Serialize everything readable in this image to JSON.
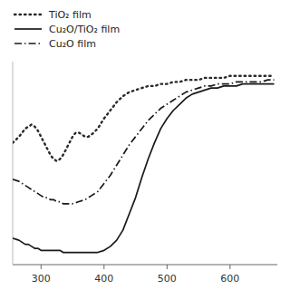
{
  "chart_data": {
    "type": "line",
    "xlim": [
      255,
      675
    ],
    "ylim": [
      0,
      1
    ],
    "xticks": [
      300,
      400,
      500,
      600
    ],
    "tick_labels": "x",
    "legend": "upper left",
    "series": [
      {
        "name": "TiO₂ film",
        "color": "#2a2a2a",
        "line_style": "dotted",
        "x": [
          255,
          265,
          270,
          275,
          280,
          285,
          290,
          295,
          300,
          305,
          310,
          315,
          320,
          325,
          330,
          335,
          340,
          345,
          350,
          355,
          360,
          365,
          370,
          375,
          380,
          390,
          400,
          410,
          420,
          430,
          440,
          450,
          460,
          470,
          480,
          490,
          500,
          510,
          520,
          530,
          540,
          550,
          560,
          570,
          580,
          590,
          600,
          610,
          620,
          630,
          640,
          650,
          660,
          670
        ],
        "values": [
          0.6,
          0.63,
          0.65,
          0.67,
          0.68,
          0.69,
          0.68,
          0.66,
          0.63,
          0.6,
          0.57,
          0.54,
          0.52,
          0.51,
          0.52,
          0.54,
          0.57,
          0.6,
          0.63,
          0.65,
          0.65,
          0.64,
          0.63,
          0.63,
          0.64,
          0.67,
          0.72,
          0.76,
          0.8,
          0.83,
          0.85,
          0.86,
          0.87,
          0.88,
          0.88,
          0.89,
          0.89,
          0.9,
          0.9,
          0.91,
          0.91,
          0.91,
          0.92,
          0.92,
          0.92,
          0.92,
          0.93,
          0.93,
          0.93,
          0.93,
          0.93,
          0.93,
          0.93,
          0.93
        ]
      },
      {
        "name": "Cu₂O/TiO₂ film",
        "color": "#1a1a1a",
        "line_style": "solid",
        "x": [
          255,
          265,
          270,
          275,
          280,
          285,
          290,
          295,
          300,
          305,
          310,
          315,
          320,
          325,
          330,
          335,
          340,
          345,
          350,
          355,
          360,
          370,
          380,
          390,
          400,
          410,
          420,
          430,
          440,
          450,
          460,
          470,
          480,
          490,
          500,
          510,
          520,
          530,
          540,
          550,
          560,
          570,
          580,
          590,
          600,
          610,
          620,
          630,
          640,
          650,
          660,
          670
        ],
        "values": [
          0.13,
          0.12,
          0.11,
          0.1,
          0.1,
          0.09,
          0.08,
          0.08,
          0.07,
          0.07,
          0.07,
          0.07,
          0.07,
          0.07,
          0.07,
          0.06,
          0.06,
          0.06,
          0.06,
          0.06,
          0.06,
          0.06,
          0.06,
          0.06,
          0.07,
          0.09,
          0.12,
          0.17,
          0.25,
          0.33,
          0.43,
          0.52,
          0.6,
          0.67,
          0.72,
          0.76,
          0.79,
          0.82,
          0.84,
          0.85,
          0.86,
          0.87,
          0.87,
          0.88,
          0.88,
          0.88,
          0.89,
          0.89,
          0.89,
          0.89,
          0.89,
          0.89
        ]
      },
      {
        "name": "Cu₂O film",
        "color": "#1a1a1a",
        "line_style": "dashdot",
        "x": [
          255,
          265,
          270,
          275,
          280,
          285,
          290,
          295,
          300,
          305,
          310,
          315,
          320,
          325,
          330,
          335,
          340,
          345,
          350,
          360,
          370,
          380,
          390,
          400,
          410,
          420,
          430,
          440,
          450,
          460,
          470,
          480,
          490,
          500,
          510,
          520,
          530,
          540,
          550,
          560,
          570,
          580,
          590,
          600,
          610,
          620,
          630,
          640,
          650,
          660,
          670
        ],
        "values": [
          0.42,
          0.41,
          0.4,
          0.39,
          0.38,
          0.37,
          0.36,
          0.35,
          0.34,
          0.33,
          0.33,
          0.32,
          0.32,
          0.31,
          0.31,
          0.3,
          0.3,
          0.3,
          0.3,
          0.31,
          0.32,
          0.34,
          0.36,
          0.4,
          0.44,
          0.49,
          0.54,
          0.59,
          0.63,
          0.67,
          0.71,
          0.74,
          0.77,
          0.79,
          0.81,
          0.83,
          0.85,
          0.86,
          0.87,
          0.88,
          0.88,
          0.89,
          0.89,
          0.89,
          0.9,
          0.9,
          0.9,
          0.9,
          0.9,
          0.91,
          0.91
        ]
      }
    ]
  }
}
